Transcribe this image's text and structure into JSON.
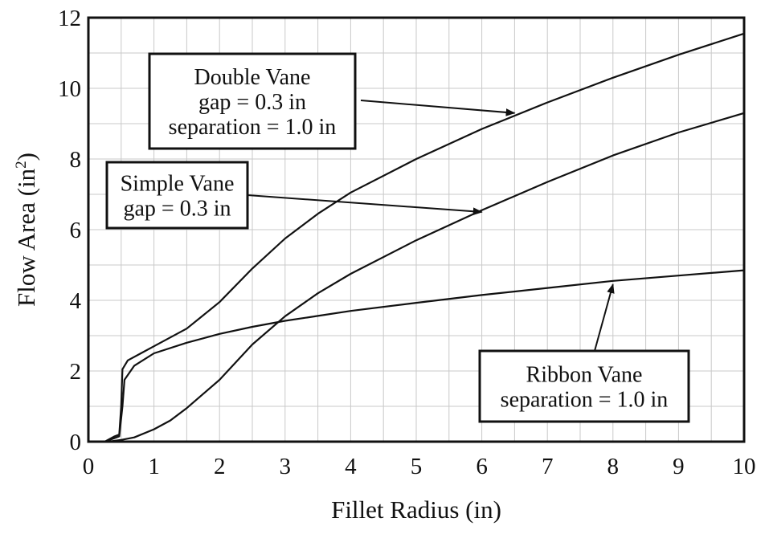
{
  "chart_data": {
    "type": "line",
    "title": "",
    "xlabel": "Fillet Radius (in)",
    "ylabel": "Flow Area (in",
    "ylabel_superscript": "2",
    "ylabel_suffix": ")",
    "xlim": [
      0,
      10
    ],
    "ylim": [
      0,
      12
    ],
    "x_ticks": [
      "0",
      "1",
      "2",
      "3",
      "4",
      "5",
      "6",
      "7",
      "8",
      "9",
      "10"
    ],
    "y_ticks": [
      "0",
      "2",
      "4",
      "6",
      "8",
      "10",
      "12"
    ],
    "grid": true,
    "series": [
      {
        "x": [
          0.25,
          0.4,
          0.47,
          0.5,
          0.52,
          0.6,
          0.8,
          1.0,
          1.5,
          2.0,
          2.5,
          3.0,
          3.5,
          4.0,
          5.0,
          6.0,
          7.0,
          8.0,
          9.0,
          10.0
        ],
        "y": [
          0.0,
          0.15,
          0.2,
          1.0,
          2.05,
          2.3,
          2.5,
          2.7,
          3.2,
          3.95,
          4.9,
          5.75,
          6.45,
          7.05,
          8.0,
          8.85,
          9.6,
          10.3,
          10.95,
          11.55
        ]
      },
      {
        "x": [
          0.25,
          0.4,
          0.47,
          0.52,
          0.55,
          0.7,
          1.0,
          1.5,
          2.0,
          2.5,
          3.0,
          3.5,
          4.0,
          5.0,
          6.0,
          7.0,
          8.0,
          9.0,
          10.0
        ],
        "y": [
          0.0,
          0.1,
          0.15,
          1.0,
          1.75,
          2.15,
          2.5,
          2.8,
          3.05,
          3.25,
          3.42,
          3.56,
          3.7,
          3.93,
          4.15,
          4.35,
          4.55,
          4.7,
          4.85
        ]
      },
      {
        "x": [
          0.3,
          0.5,
          0.7,
          1.0,
          1.25,
          1.5,
          2.0,
          2.5,
          3.0,
          3.5,
          4.0,
          5.0,
          6.0,
          7.0,
          8.0,
          9.0,
          10.0
        ],
        "y": [
          0.0,
          0.05,
          0.12,
          0.35,
          0.6,
          0.95,
          1.75,
          2.75,
          3.55,
          4.2,
          4.75,
          5.7,
          6.55,
          7.35,
          8.1,
          8.75,
          9.3
        ]
      }
    ],
    "annotations": [
      {
        "lines": [
          "Double Vane",
          "gap = 0.3 in",
          "separation = 1.0 in"
        ],
        "target": [
          6.5,
          9.3
        ]
      },
      {
        "lines": [
          "Simple Vane",
          "gap = 0.3 in"
        ],
        "target": [
          6.0,
          6.5
        ]
      },
      {
        "lines": [
          "Ribbon Vane",
          "separation = 1.0 in"
        ],
        "target": [
          8.0,
          4.45
        ]
      }
    ]
  }
}
